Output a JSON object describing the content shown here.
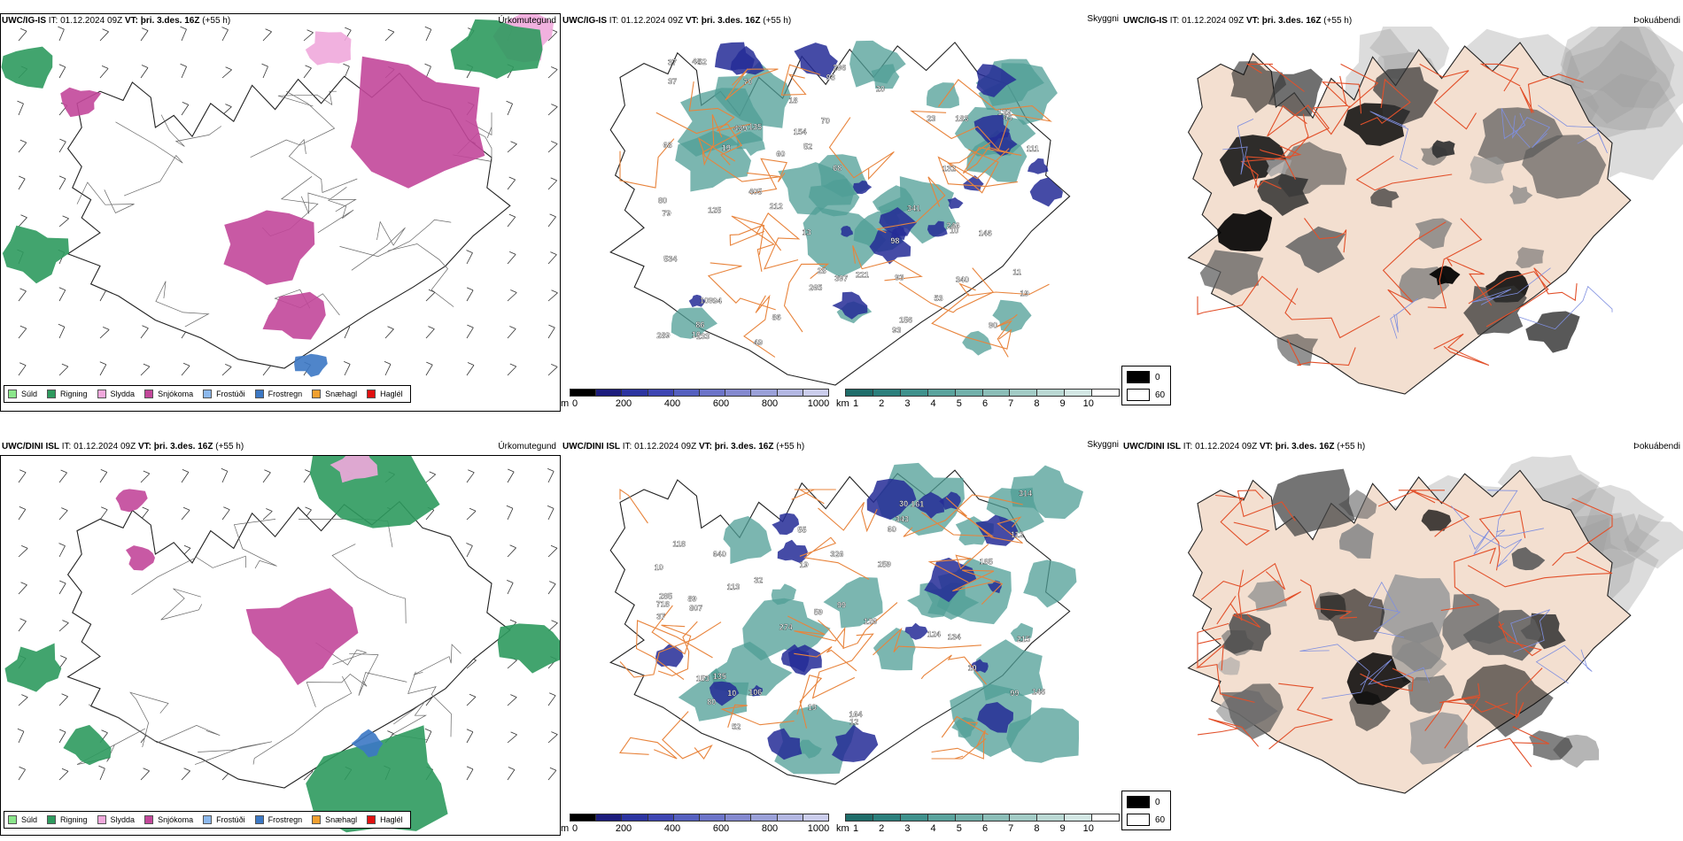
{
  "colors": {
    "sudd": "#8be68b",
    "rigning": "#2e9a5e",
    "slydda": "#f0a8dc",
    "snjokoma": "#c2479a",
    "frostudi": "#8cb8ec",
    "frostregn": "#3c78c4",
    "snaehagl": "#f0a030",
    "haglel": "#e01010",
    "road": "#e8843c",
    "overlay_land": "#f3dfd0",
    "teal": "#4f9e95",
    "navy": "#242c96"
  },
  "legend_items": [
    {
      "label": "Súld",
      "color": "#8be68b"
    },
    {
      "label": "Rigning",
      "color": "#2e9a5e"
    },
    {
      "label": "Slydda",
      "color": "#f0a8dc"
    },
    {
      "label": "Snjókoma",
      "color": "#c2479a"
    },
    {
      "label": "Frostúði",
      "color": "#8cb8ec"
    },
    {
      "label": "Frostregn",
      "color": "#3c78c4"
    },
    {
      "label": "Snæhagl",
      "color": "#f0a030"
    },
    {
      "label": "Haglél",
      "color": "#e01010"
    }
  ],
  "rows": [
    {
      "model": "UWC/IG-IS",
      "it_label": "IT:",
      "it_value": "01.12.2024 09Z",
      "vt_label": "VT:",
      "vt_value": "þri. 3.des. 16Z",
      "lead": "(+55 h)"
    },
    {
      "model": "UWC/DINI ISL",
      "it_label": "IT:",
      "it_value": "01.12.2024 09Z",
      "vt_label": "VT:",
      "vt_value": "þri. 3.des. 16Z",
      "lead": "(+55 h)"
    }
  ],
  "panel_titles": {
    "precip": "Úrkomutegund",
    "cloud": "Skyggni",
    "cover": "Þokuábendi"
  },
  "cloud_height_bar": {
    "unit": "m",
    "ticks": [
      "0",
      "200",
      "400",
      "600",
      "800",
      "1000"
    ],
    "colors": [
      "#000000",
      "#1c1c7c",
      "#2c34a0",
      "#3d45b2",
      "#5560bf",
      "#6c74c8",
      "#8489cf",
      "#9aa0d8",
      "#b3b7e2",
      "#cbcdec"
    ]
  },
  "visibility_bar": {
    "unit": "km",
    "ticks": [
      "1",
      "2",
      "3",
      "4",
      "5",
      "6",
      "7",
      "8",
      "9",
      "10"
    ],
    "colors": [
      "#1f6d6a",
      "#2c7f7c",
      "#3f918c",
      "#5aa39d",
      "#72b0aa",
      "#8bbdb7",
      "#a2cbc5",
      "#bad8d3",
      "#d3e7e4",
      "#ffffff"
    ]
  },
  "gray_key": {
    "dark_label": "0",
    "light_label": "60"
  },
  "top_labels": [
    "94",
    "109",
    "86",
    "60",
    "296",
    "139",
    "154",
    "397",
    "340",
    "93",
    "68",
    "52",
    "28",
    "183",
    "439",
    "133",
    "246",
    "265",
    "289",
    "53",
    "37",
    "93",
    "68",
    "70",
    "10",
    "111",
    "11",
    "86",
    "45",
    "90",
    "52",
    "19",
    "20",
    "18",
    "10",
    "13",
    "221",
    "80",
    "93",
    "405",
    "135",
    "156",
    "146",
    "125",
    "132",
    "341",
    "534",
    "212",
    "79",
    "70",
    "98",
    "49",
    "48",
    "37",
    "23",
    "19"
  ],
  "bottom_labels": [
    "185",
    "161",
    "99",
    "106",
    "80",
    "60",
    "113",
    "99",
    "164",
    "285",
    "19",
    "12",
    "118",
    "10",
    "215",
    "343",
    "259",
    "640",
    "807",
    "718",
    "326",
    "134",
    "59",
    "52",
    "146",
    "135",
    "124",
    "89",
    "126",
    "274",
    "19",
    "112",
    "55",
    "32",
    "30",
    "10",
    "10",
    "37",
    "153",
    "314"
  ]
}
